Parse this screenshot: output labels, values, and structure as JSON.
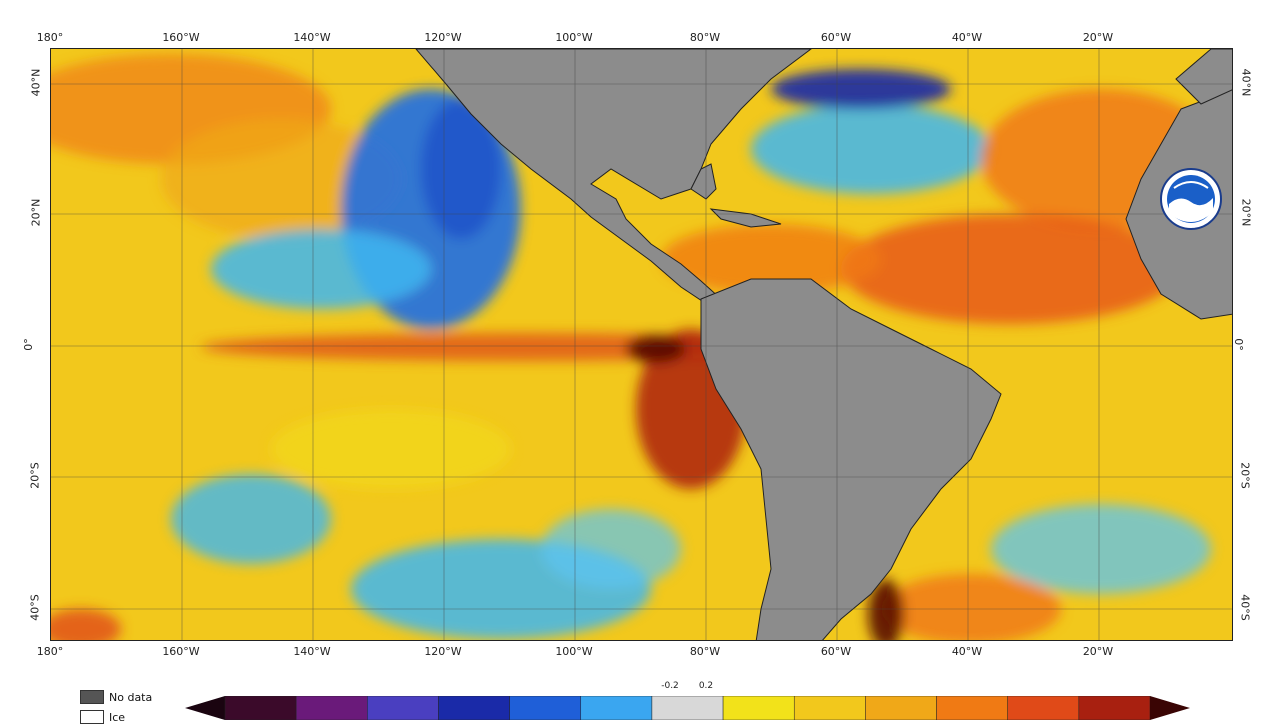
{
  "map": {
    "lon_ticks": [
      "180°",
      "160°W",
      "140°W",
      "120°W",
      "100°W",
      "80°W",
      "60°W",
      "40°W",
      "20°W"
    ],
    "lat_ticks_left": [
      "40°N",
      "20°N",
      "0°",
      "20°S",
      "40°S"
    ],
    "lat_ticks_right": [
      "40°N",
      "20°N",
      "0°",
      "20°S",
      "40°S"
    ],
    "colors": {
      "land": "#8c8c8c",
      "warm_yellow": "#f2c81c",
      "orange": "#f08a14",
      "red": "#c8321a",
      "dark_red": "#6b0d08",
      "light_blue": "#3fb6f0",
      "blue": "#1e6fe6",
      "grid": "#444444"
    },
    "logo_icon": "noaa-logo-icon"
  },
  "legend": {
    "no_data_label": "No data",
    "ice_label": "Ice",
    "no_data_color": "#555555",
    "ice_color": "#ffffff"
  },
  "colorbar": {
    "tick_left": "-0.2",
    "tick_right": "0.2",
    "segments": [
      "#3b0a2a",
      "#6a1a7a",
      "#4a3fc0",
      "#1a2aa8",
      "#1f5fd8",
      "#3aa6f0",
      "#d8d8d8",
      "#f2e21a",
      "#f2c81c",
      "#f0a818",
      "#f07a14",
      "#e04a18",
      "#a82010"
    ]
  }
}
